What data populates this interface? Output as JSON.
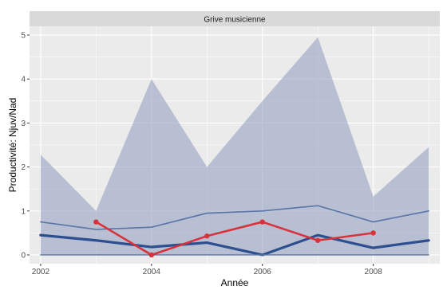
{
  "chart_data": {
    "type": "line",
    "facet_label": "Grive musicienne",
    "xlabel": "Année",
    "ylabel": "Productivité: Njuv/Nad",
    "xlim": [
      2001.8,
      2009.2
    ],
    "ylim": [
      -0.2,
      5.2
    ],
    "x_ticks": [
      2002,
      2004,
      2006,
      2008
    ],
    "y_ticks": [
      0,
      1,
      2,
      3,
      4,
      5
    ],
    "grid": true,
    "background": "#ebebeb",
    "band": {
      "color": "#9aa4c3",
      "x": [
        2002,
        2003,
        2004,
        2005,
        2006,
        2007,
        2008,
        2009
      ],
      "lower": [
        0,
        0,
        0,
        0,
        0,
        0,
        0,
        0
      ],
      "upper": [
        2.28,
        1.0,
        4.0,
        2.0,
        3.5,
        4.95,
        1.33,
        2.45
      ]
    },
    "series": [
      {
        "style": "thin",
        "color": "#5a75a8",
        "x": [
          2002,
          2003,
          2004,
          2005,
          2006,
          2007,
          2008,
          2009
        ],
        "values": [
          0.75,
          0.58,
          0.63,
          0.95,
          1.0,
          1.12,
          0.75,
          1.0
        ]
      },
      {
        "style": "thick",
        "color": "#2d4f8f",
        "x": [
          2002,
          2003,
          2004,
          2005,
          2006,
          2007,
          2008,
          2009
        ],
        "values": [
          0.45,
          0.33,
          0.18,
          0.28,
          0.0,
          0.45,
          0.16,
          0.33
        ]
      },
      {
        "style": "baseline",
        "color": "#5a75a8",
        "x": [
          2002,
          2003,
          2004,
          2005,
          2006,
          2007,
          2008,
          2009
        ],
        "values": [
          0,
          0,
          0,
          0,
          0,
          0,
          0,
          0
        ]
      },
      {
        "style": "points",
        "color": "#d7333c",
        "x": [
          2003,
          2004,
          2005,
          2006,
          2007,
          2008
        ],
        "values": [
          0.75,
          0.0,
          0.43,
          0.75,
          0.33,
          0.5
        ]
      }
    ]
  }
}
